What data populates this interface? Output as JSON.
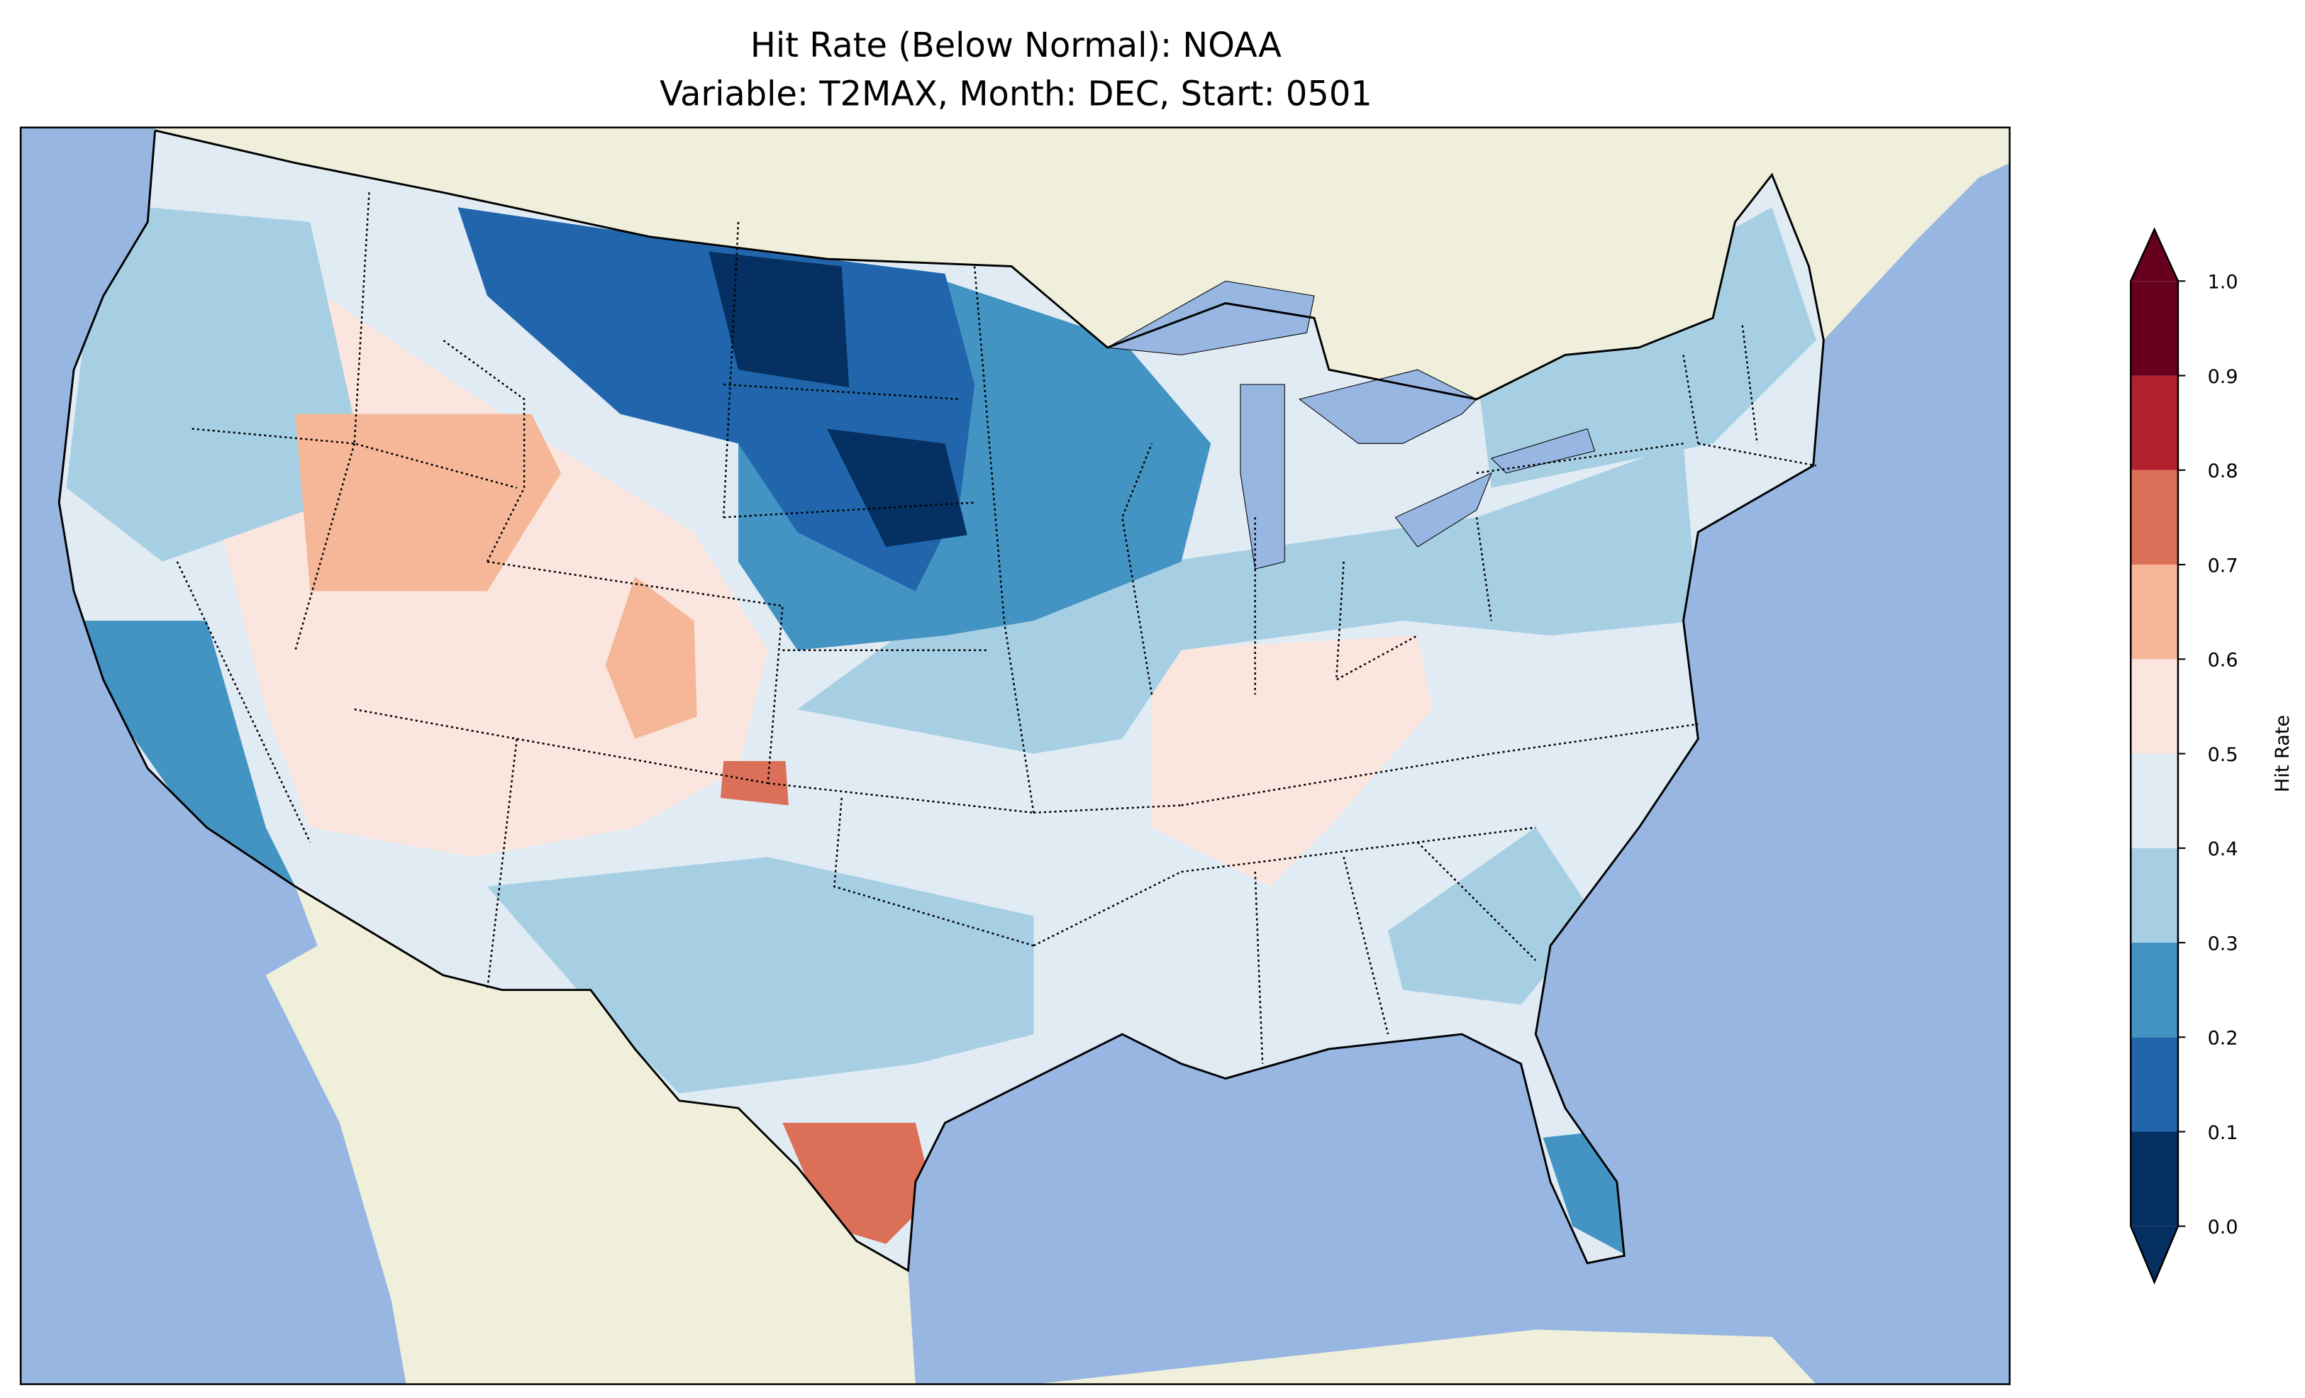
{
  "title": {
    "line1": "Hit Rate (Below Normal): NOAA",
    "line2": "Variable: T2MAX, Month: DEC, Start: 0501"
  },
  "colors": {
    "ocean": "#97b6e1",
    "land": "#efefdb"
  },
  "chart_data": {
    "type": "heatmap",
    "title": "Hit Rate (Below Normal): NOAA / Variable: T2MAX, Month: DEC, Start: 0501",
    "colorbar": {
      "label": "Hit Rate",
      "range": [
        0.0,
        1.0
      ],
      "extend": "both",
      "ticks": [
        "0.0",
        "0.1",
        "0.2",
        "0.3",
        "0.4",
        "0.5",
        "0.6",
        "0.7",
        "0.8",
        "0.9",
        "1.0"
      ],
      "levels": [
        {
          "min": 0.0,
          "max": 0.1,
          "color": "#053061"
        },
        {
          "min": 0.1,
          "max": 0.2,
          "color": "#2166ac"
        },
        {
          "min": 0.2,
          "max": 0.3,
          "color": "#4393c3"
        },
        {
          "min": 0.3,
          "max": 0.4,
          "color": "#a7cfe4"
        },
        {
          "min": 0.4,
          "max": 0.5,
          "color": "#e0ebf3"
        },
        {
          "min": 0.5,
          "max": 0.6,
          "color": "#fae6de"
        },
        {
          "min": 0.6,
          "max": 0.7,
          "color": "#f6b799"
        },
        {
          "min": 0.7,
          "max": 0.8,
          "color": "#dc6f58"
        },
        {
          "min": 0.8,
          "max": 0.9,
          "color": "#b2212e"
        },
        {
          "min": 0.9,
          "max": 1.0,
          "color": "#67001f"
        }
      ]
    },
    "regions": [
      {
        "name": "contiguous-us-base",
        "value": 0.45
      },
      {
        "name": "great-basin-rockies",
        "value": 0.55
      },
      {
        "name": "midwest-kentucky",
        "value": 0.55
      },
      {
        "name": "pacific-northwest",
        "value": 0.35
      },
      {
        "name": "ohio-valley-midwest",
        "value": 0.35
      },
      {
        "name": "northeast",
        "value": 0.35
      },
      {
        "name": "west-texas-new-mexico",
        "value": 0.35
      },
      {
        "name": "georgia-carolinas",
        "value": 0.35
      },
      {
        "name": "upper-midwest",
        "value": 0.25
      },
      {
        "name": "california",
        "value": 0.25
      },
      {
        "name": "florida",
        "value": 0.25
      },
      {
        "name": "northern-plains",
        "value": 0.15
      },
      {
        "name": "montana-north-dakota-core",
        "value": 0.05
      },
      {
        "name": "south-dakota-core",
        "value": 0.05
      },
      {
        "name": "idaho-utah",
        "value": 0.65
      },
      {
        "name": "colorado",
        "value": 0.65
      },
      {
        "name": "south-texas",
        "value": 0.75
      },
      {
        "name": "new-mexico-spot",
        "value": 0.75
      }
    ]
  }
}
